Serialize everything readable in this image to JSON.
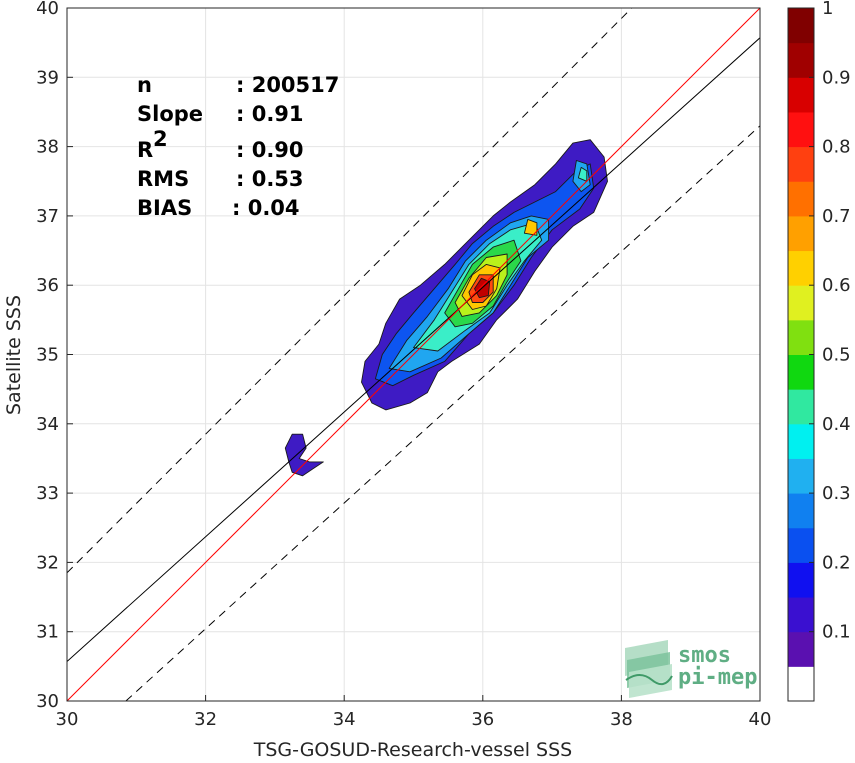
{
  "chart_data": {
    "type": "density-contour-scatter",
    "xlabel": "TSG-GOSUD-Research-vessel SSS",
    "ylabel": "Satellite SSS",
    "xlim": [
      30,
      40
    ],
    "ylim": [
      30,
      40
    ],
    "xticks": [
      "30",
      "32",
      "34",
      "36",
      "38",
      "40"
    ],
    "yticks": [
      "30",
      "31",
      "32",
      "33",
      "34",
      "35",
      "36",
      "37",
      "38",
      "39",
      "40"
    ],
    "grid": true,
    "stats": [
      {
        "key": "n",
        "value": ": 200517"
      },
      {
        "key": "Slope",
        "value": ": 0.91"
      },
      {
        "key": "R",
        "sup": "2",
        "value": ": 0.90"
      },
      {
        "key": "RMS",
        "value": ": 0.53"
      },
      {
        "key": "BIAS",
        "value": ": 0.04"
      }
    ],
    "lines": {
      "one_to_one": {
        "points": [
          [
            30,
            30
          ],
          [
            40,
            40
          ]
        ],
        "color": "#ff0000"
      },
      "regression": {
        "points": [
          [
            30,
            30.57
          ],
          [
            40,
            39.57
          ]
        ],
        "color": "#000000"
      },
      "upper_bound": {
        "points": [
          [
            30,
            31.85
          ],
          [
            38.15,
            40
          ]
        ],
        "color": "#000000",
        "dash": true
      },
      "lower_bound": {
        "points": [
          [
            30.85,
            30
          ],
          [
            40,
            38.3
          ]
        ],
        "color": "#000000",
        "dash": true
      }
    },
    "density_levels": [
      {
        "level": 0.05,
        "color": "#3e1bc4",
        "points": [
          [
            34.25,
            34.6
          ],
          [
            34.3,
            34.9
          ],
          [
            34.5,
            35.15
          ],
          [
            34.6,
            35.45
          ],
          [
            34.8,
            35.8
          ],
          [
            35.1,
            36.0
          ],
          [
            35.45,
            36.3
          ],
          [
            35.7,
            36.55
          ],
          [
            35.95,
            36.8
          ],
          [
            36.15,
            37.0
          ],
          [
            36.4,
            37.2
          ],
          [
            36.75,
            37.45
          ],
          [
            37.05,
            37.75
          ],
          [
            37.3,
            38.05
          ],
          [
            37.55,
            38.1
          ],
          [
            37.75,
            37.85
          ],
          [
            37.8,
            37.5
          ],
          [
            37.6,
            37.05
          ],
          [
            37.3,
            36.85
          ],
          [
            37.0,
            36.55
          ],
          [
            36.75,
            36.2
          ],
          [
            36.5,
            35.8
          ],
          [
            36.2,
            35.5
          ],
          [
            35.95,
            35.15
          ],
          [
            35.55,
            34.9
          ],
          [
            35.35,
            34.75
          ],
          [
            35.2,
            34.45
          ],
          [
            34.95,
            34.3
          ],
          [
            34.6,
            34.2
          ],
          [
            34.4,
            34.3
          ]
        ]
      },
      {
        "level": 0.2,
        "color": "#0d55f0",
        "points": [
          [
            34.45,
            34.65
          ],
          [
            34.55,
            35.0
          ],
          [
            34.75,
            35.3
          ],
          [
            35.0,
            35.6
          ],
          [
            35.3,
            35.95
          ],
          [
            35.6,
            36.3
          ],
          [
            35.85,
            36.6
          ],
          [
            36.15,
            36.85
          ],
          [
            36.45,
            37.05
          ],
          [
            36.75,
            37.2
          ],
          [
            37.05,
            37.35
          ],
          [
            37.35,
            37.65
          ],
          [
            37.55,
            37.75
          ],
          [
            37.6,
            37.4
          ],
          [
            37.4,
            37.1
          ],
          [
            37.0,
            36.8
          ],
          [
            36.7,
            36.4
          ],
          [
            36.45,
            36.0
          ],
          [
            36.15,
            35.6
          ],
          [
            35.8,
            35.3
          ],
          [
            35.45,
            34.9
          ],
          [
            35.0,
            34.7
          ],
          [
            34.7,
            34.55
          ]
        ]
      },
      {
        "level": 0.3,
        "color": "#20a6f0",
        "points": [
          [
            34.65,
            34.8
          ],
          [
            34.9,
            35.2
          ],
          [
            35.2,
            35.55
          ],
          [
            35.5,
            35.95
          ],
          [
            35.75,
            36.35
          ],
          [
            36.05,
            36.65
          ],
          [
            36.4,
            36.9
          ],
          [
            36.7,
            37.0
          ],
          [
            36.95,
            36.95
          ],
          [
            36.95,
            36.65
          ],
          [
            36.65,
            36.4
          ],
          [
            36.4,
            36.0
          ],
          [
            36.15,
            35.6
          ],
          [
            35.8,
            35.3
          ],
          [
            35.4,
            34.95
          ],
          [
            34.95,
            34.75
          ]
        ]
      },
      {
        "level": 0.4,
        "color": "#3aeec8",
        "points": [
          [
            35.0,
            35.1
          ],
          [
            35.3,
            35.5
          ],
          [
            35.55,
            35.9
          ],
          [
            35.8,
            36.3
          ],
          [
            36.1,
            36.6
          ],
          [
            36.4,
            36.8
          ],
          [
            36.75,
            36.9
          ],
          [
            36.85,
            36.65
          ],
          [
            36.6,
            36.35
          ],
          [
            36.35,
            36.0
          ],
          [
            36.1,
            35.6
          ],
          [
            35.75,
            35.35
          ],
          [
            35.35,
            35.05
          ]
        ]
      },
      {
        "level": 0.5,
        "color": "#2ad84a",
        "points": [
          [
            35.45,
            35.6
          ],
          [
            35.65,
            35.95
          ],
          [
            35.85,
            36.3
          ],
          [
            36.15,
            36.55
          ],
          [
            36.45,
            36.65
          ],
          [
            36.55,
            36.35
          ],
          [
            36.35,
            36.05
          ],
          [
            36.15,
            35.7
          ],
          [
            35.85,
            35.45
          ],
          [
            35.6,
            35.4
          ]
        ]
      },
      {
        "level": 0.6,
        "color": "#b9f21b",
        "points": [
          [
            35.6,
            35.75
          ],
          [
            35.8,
            36.1
          ],
          [
            36.05,
            36.4
          ],
          [
            36.35,
            36.45
          ],
          [
            36.35,
            36.15
          ],
          [
            36.2,
            35.85
          ],
          [
            35.95,
            35.6
          ],
          [
            35.7,
            35.55
          ]
        ]
      },
      {
        "level": 0.7,
        "color": "#ffc800",
        "points": [
          [
            35.7,
            35.85
          ],
          [
            35.85,
            36.15
          ],
          [
            36.05,
            36.3
          ],
          [
            36.25,
            36.25
          ],
          [
            36.2,
            35.95
          ],
          [
            36.05,
            35.7
          ],
          [
            35.85,
            35.65
          ]
        ]
      },
      {
        "level": 0.85,
        "color": "#ff4a10",
        "points": [
          [
            35.8,
            35.9
          ],
          [
            35.95,
            36.15
          ],
          [
            36.15,
            36.15
          ],
          [
            36.15,
            35.9
          ],
          [
            36.0,
            35.75
          ],
          [
            35.85,
            35.75
          ]
        ]
      },
      {
        "level": 1.0,
        "color": "#c00000",
        "points": [
          [
            35.88,
            35.95
          ],
          [
            35.98,
            36.1
          ],
          [
            36.1,
            36.05
          ],
          [
            36.08,
            35.85
          ],
          [
            35.95,
            35.82
          ]
        ]
      }
    ],
    "density_patches": [
      {
        "color": "#3e1bc4",
        "points": [
          [
            33.15,
            33.65
          ],
          [
            33.25,
            33.85
          ],
          [
            33.4,
            33.85
          ],
          [
            33.45,
            33.65
          ],
          [
            33.35,
            33.5
          ],
          [
            33.5,
            33.45
          ],
          [
            33.7,
            33.45
          ],
          [
            33.55,
            33.35
          ],
          [
            33.4,
            33.25
          ],
          [
            33.25,
            33.3
          ],
          [
            33.2,
            33.45
          ]
        ]
      },
      {
        "color": "#20a6f0",
        "points": [
          [
            37.3,
            37.5
          ],
          [
            37.35,
            37.8
          ],
          [
            37.5,
            37.75
          ],
          [
            37.55,
            37.45
          ],
          [
            37.42,
            37.35
          ]
        ]
      },
      {
        "color": "#3aeec8",
        "points": [
          [
            37.38,
            37.55
          ],
          [
            37.42,
            37.7
          ],
          [
            37.5,
            37.65
          ],
          [
            37.5,
            37.5
          ]
        ]
      },
      {
        "color": "#ffc800",
        "points": [
          [
            36.6,
            36.75
          ],
          [
            36.65,
            36.95
          ],
          [
            36.78,
            36.9
          ],
          [
            36.78,
            36.72
          ]
        ]
      }
    ],
    "colorbar": {
      "ticks": [
        "0.1",
        "0.2",
        "0.3",
        "0.4",
        "0.5",
        "0.6",
        "0.7",
        "0.8",
        "0.9",
        "1"
      ],
      "colors": [
        "#ffffff",
        "#5a10b0",
        "#3a10d0",
        "#1010f0",
        "#0a50f0",
        "#1080f0",
        "#20b0f0",
        "#00f0f0",
        "#30e8a0",
        "#10d810",
        "#80e010",
        "#e0f020",
        "#ffd000",
        "#ffa000",
        "#ff7000",
        "#ff4010",
        "#ff1010",
        "#d80000",
        "#a00000",
        "#800000"
      ],
      "range": [
        0,
        1.0
      ]
    }
  },
  "logo": {
    "line1": "smos",
    "line2": "pi-mep",
    "colors": {
      "dark": "#3f9a68",
      "light": "#a8d8bd"
    }
  }
}
